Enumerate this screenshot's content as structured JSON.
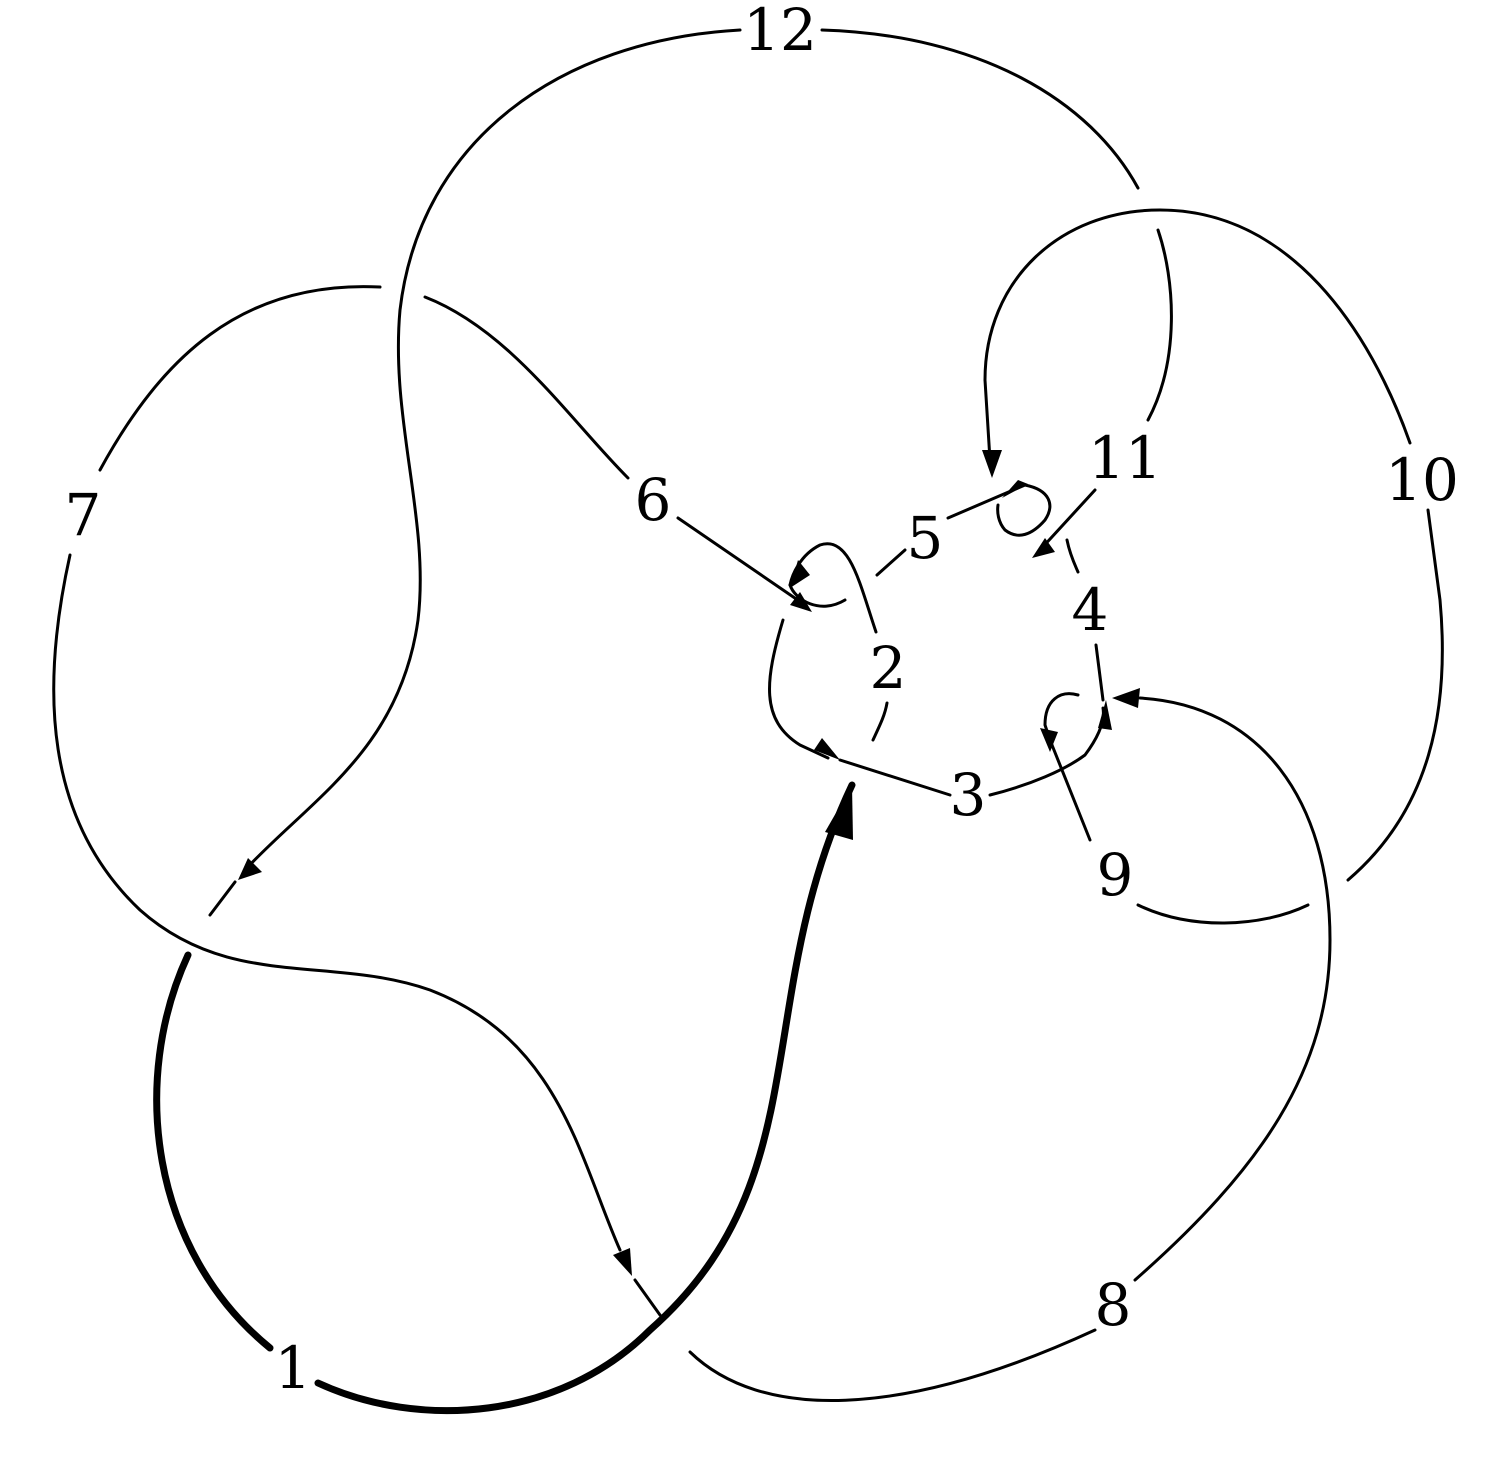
{
  "diagram": {
    "description_free": true,
    "labels": [
      "1",
      "2",
      "3",
      "4",
      "5",
      "6",
      "7",
      "8",
      "9",
      "10",
      "11",
      "12"
    ],
    "highlighted_arc": "1"
  }
}
